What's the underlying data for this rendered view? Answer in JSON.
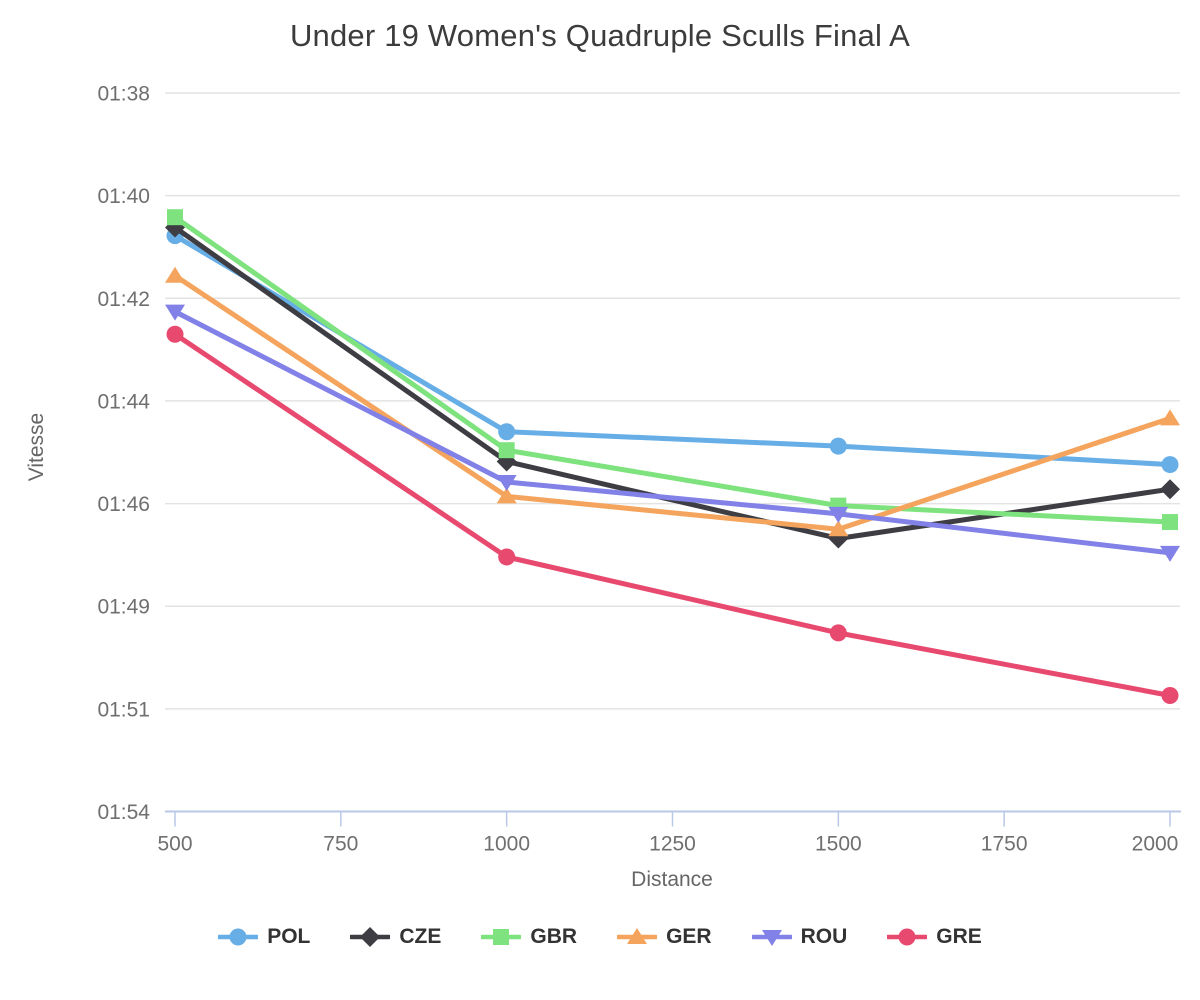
{
  "chart_data": {
    "type": "line",
    "title": "Under 19 Women's Quadruple Sculls Final A",
    "xlabel": "Distance",
    "ylabel": "Vitesse",
    "xlim": [
      500,
      2000
    ],
    "x_ticks": [
      500,
      750,
      1000,
      1250,
      1500,
      1750,
      2000
    ],
    "x": [
      500,
      1000,
      1500,
      2000
    ],
    "y_ticks": [
      {
        "label": "01:38",
        "speed_ms": 5.1
      },
      {
        "label": "01:40",
        "speed_ms": 5.0
      },
      {
        "label": "01:42",
        "speed_ms": 4.9
      },
      {
        "label": "01:44",
        "speed_ms": 4.8
      },
      {
        "label": "01:46",
        "speed_ms": 4.7
      },
      {
        "label": "01:49",
        "speed_ms": 4.6
      },
      {
        "label": "01:51",
        "speed_ms": 4.5
      },
      {
        "label": "01:54",
        "speed_ms": 4.4
      }
    ],
    "series": [
      {
        "name": "POL",
        "color": "#67AEE6",
        "marker": "circle",
        "speed_ms": [
          4.961,
          4.77,
          4.756,
          4.738
        ],
        "pace_per_500m": [
          "01:40.8",
          "01:44.8",
          "01:45.1",
          "01:45.5"
        ]
      },
      {
        "name": "CZE",
        "color": "#3D3D43",
        "marker": "diamond",
        "speed_ms": [
          4.969,
          4.741,
          4.666,
          4.714
        ],
        "pace_per_500m": [
          "01:40.6",
          "01:45.5",
          "01:47.2",
          "01:46.1"
        ]
      },
      {
        "name": "GBR",
        "color": "#7EE37E",
        "marker": "square",
        "speed_ms": [
          4.979,
          4.752,
          4.698,
          4.682
        ],
        "pace_per_500m": [
          "01:40.4",
          "01:45.2",
          "01:46.4",
          "01:46.8"
        ]
      },
      {
        "name": "GER",
        "color": "#F4A45C",
        "marker": "triangle-up",
        "speed_ms": [
          4.922,
          4.707,
          4.675,
          4.783
        ],
        "pace_per_500m": [
          "01:41.6",
          "01:46.2",
          "01:47.0",
          "01:44.5"
        ]
      },
      {
        "name": "ROU",
        "color": "#8181E8",
        "marker": "triangle-down",
        "speed_ms": [
          4.887,
          4.721,
          4.69,
          4.652
        ],
        "pace_per_500m": [
          "01:42.3",
          "01:45.9",
          "01:46.6",
          "01:47.5"
        ]
      },
      {
        "name": "GRE",
        "color": "#E84A6F",
        "marker": "circle",
        "speed_ms": [
          4.865,
          4.648,
          4.574,
          4.513
        ],
        "pace_per_500m": [
          "01:42.8",
          "01:47.6",
          "01:49.3",
          "01:50.8"
        ]
      }
    ],
    "legend": [
      "POL",
      "CZE",
      "GBR",
      "GER",
      "ROU",
      "GRE"
    ],
    "legend_position": "bottom",
    "grid": true,
    "colors": {
      "grid": "#E3E3E3",
      "axis": "#B8C8E6",
      "tick_label": "#6F6F6F",
      "axis_label": "#666666",
      "title": "#3C3C3C",
      "legend_text": "#333333",
      "background": "#FFFFFF"
    }
  }
}
